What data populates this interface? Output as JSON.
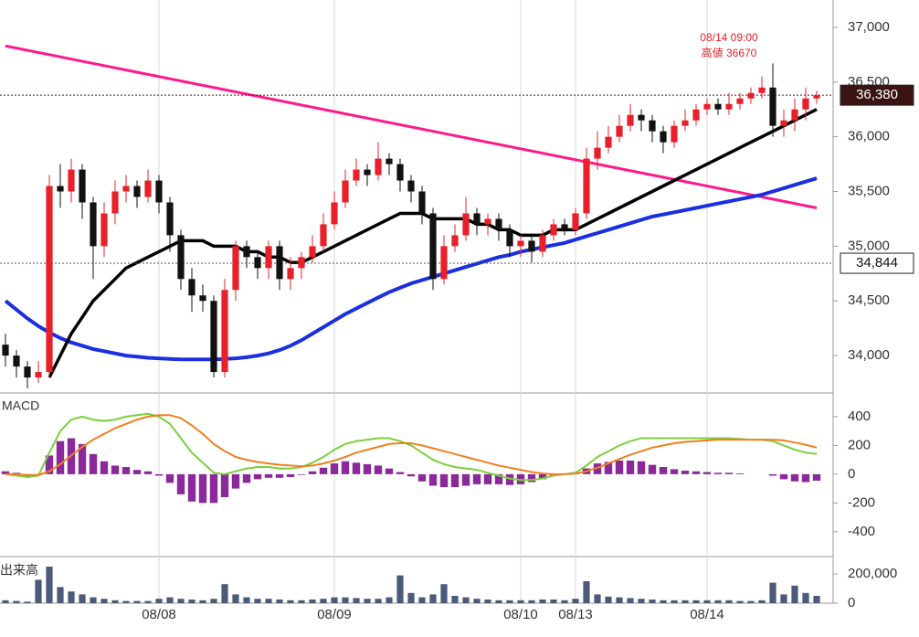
{
  "chart_data": [
    {
      "type": "candlestick",
      "xlim": [
        -0.5,
        75.5
      ],
      "xticks": [
        {
          "value": 14,
          "label": "08/08"
        },
        {
          "value": 30,
          "label": "08/09"
        },
        {
          "value": 47,
          "label": "08/10"
        },
        {
          "value": 52,
          "label": "08/13"
        },
        {
          "value": 64,
          "label": "08/14"
        }
      ],
      "ylim": [
        33675,
        37250
      ],
      "yticks": [
        {
          "value": 34000,
          "label": "34,000"
        },
        {
          "value": 34500,
          "label": "34,500"
        },
        {
          "value": 35000,
          "label": "35,000"
        },
        {
          "value": 35500,
          "label": "35,500"
        },
        {
          "value": 36000,
          "label": "36,000"
        },
        {
          "value": 36500,
          "label": "36,500"
        },
        {
          "value": 37000,
          "label": "37,000"
        }
      ],
      "up_color": "#e8202a",
      "down_color": "#111111",
      "open": [
        34100,
        34000,
        33900,
        33800,
        33850,
        35550,
        35500,
        35700,
        35400,
        35000,
        35300,
        35500,
        35550,
        35450,
        35600,
        35400,
        35100,
        34700,
        34550,
        34500,
        33850,
        34600,
        35000,
        34900,
        34800,
        35000,
        34700,
        34800,
        34900,
        35000,
        35200,
        35400,
        35600,
        35700,
        35650,
        35800,
        35750,
        35600,
        35500,
        35300,
        34700,
        35000,
        35100,
        35300,
        35200,
        35250,
        35150,
        35000,
        35050,
        34950,
        35100,
        35200,
        35150,
        35300,
        35800,
        35900,
        36000,
        36100,
        36200,
        36150,
        36050,
        35950,
        36100,
        36150,
        36250,
        36300,
        36250,
        36300,
        36350,
        36400,
        36450,
        36100,
        36150,
        36250,
        36350
      ],
      "high": [
        34200,
        34050,
        33950,
        33950,
        35650,
        35750,
        35800,
        35750,
        35450,
        35400,
        35600,
        35650,
        35600,
        35700,
        35650,
        35450,
        35150,
        34800,
        34650,
        34550,
        34700,
        35050,
        35050,
        34950,
        35050,
        35050,
        34900,
        34950,
        35100,
        35300,
        35500,
        35700,
        35800,
        35750,
        35950,
        35850,
        35800,
        35650,
        35550,
        35350,
        35100,
        35200,
        35450,
        35350,
        35300,
        35300,
        35200,
        35100,
        35100,
        35150,
        35250,
        35250,
        35350,
        35900,
        36050,
        36100,
        36200,
        36300,
        36250,
        36200,
        36100,
        36150,
        36250,
        36300,
        36350,
        36350,
        36400,
        36400,
        36450,
        36550,
        36670,
        36250,
        36350,
        36450,
        36420
      ],
      "low": [
        33900,
        33800,
        33700,
        33750,
        33800,
        35350,
        35400,
        35250,
        34700,
        34900,
        35200,
        35400,
        35350,
        35400,
        35300,
        34950,
        34600,
        34400,
        34400,
        33800,
        33800,
        34500,
        34800,
        34700,
        34700,
        34600,
        34600,
        34700,
        34850,
        34950,
        35150,
        35350,
        35550,
        35550,
        35600,
        35650,
        35500,
        35400,
        35200,
        34600,
        34650,
        34950,
        35050,
        35100,
        35100,
        35050,
        34900,
        34900,
        34850,
        34900,
        35050,
        35100,
        35100,
        35250,
        35700,
        35850,
        35950,
        36050,
        36050,
        35950,
        35850,
        35900,
        36050,
        36100,
        36200,
        36200,
        36200,
        36250,
        36300,
        36350,
        36000,
        36000,
        36050,
        36150,
        36300
      ],
      "close": [
        34000,
        33900,
        33800,
        33850,
        35550,
        35500,
        35700,
        35400,
        35000,
        35300,
        35500,
        35550,
        35450,
        35600,
        35400,
        35100,
        34700,
        34550,
        34500,
        33850,
        34600,
        35000,
        34900,
        34800,
        35000,
        34700,
        34800,
        34900,
        35000,
        35200,
        35400,
        35600,
        35700,
        35650,
        35800,
        35750,
        35600,
        35500,
        35300,
        34700,
        35000,
        35100,
        35300,
        35200,
        35250,
        35150,
        35000,
        35050,
        34950,
        35100,
        35200,
        35150,
        35300,
        35800,
        35900,
        36000,
        36100,
        36200,
        36150,
        36050,
        35950,
        36100,
        36150,
        36250,
        36300,
        36250,
        36300,
        36350,
        36400,
        36450,
        36100,
        36150,
        36250,
        36350,
        36380
      ],
      "series": [
        {
          "color": "#1a2fe0",
          "values": [
            34500,
            34420,
            34340,
            34270,
            34210,
            34160,
            34120,
            34090,
            34060,
            34040,
            34020,
            34000,
            33990,
            33980,
            33975,
            33970,
            33965,
            33965,
            33965,
            33965,
            33970,
            33975,
            33985,
            34000,
            34020,
            34050,
            34090,
            34140,
            34200,
            34260,
            34320,
            34380,
            34430,
            34480,
            34530,
            34580,
            34620,
            34660,
            34690,
            34720,
            34750,
            34780,
            34810,
            34840,
            34870,
            34900,
            34920,
            34950,
            34970,
            34990,
            35010,
            35030,
            35060,
            35090,
            35120,
            35150,
            35180,
            35210,
            35240,
            35270,
            35290,
            35310,
            35330,
            35350,
            35370,
            35390,
            35410,
            35430,
            35450,
            35470,
            35500,
            35530,
            35560,
            35590,
            35620
          ]
        },
        {
          "color": "#000000",
          "values": [
            null,
            null,
            null,
            null,
            33800,
            34000,
            34200,
            34350,
            34500,
            34600,
            34700,
            34800,
            34850,
            34900,
            34950,
            35000,
            35050,
            35050,
            35050,
            35000,
            35000,
            35000,
            34950,
            34950,
            34900,
            34900,
            34850,
            34850,
            34900,
            34950,
            35000,
            35050,
            35100,
            35150,
            35200,
            35250,
            35300,
            35300,
            35300,
            35250,
            35250,
            35250,
            35250,
            35200,
            35200,
            35150,
            35150,
            35100,
            35100,
            35100,
            35150,
            35150,
            35150,
            35200,
            35250,
            35300,
            35350,
            35400,
            35450,
            35500,
            35550,
            35600,
            35650,
            35700,
            35750,
            35800,
            35850,
            35900,
            35950,
            36000,
            36050,
            36100,
            36150,
            36200,
            36250
          ]
        }
      ],
      "trend_line": {
        "color": "#ff1a8c",
        "x": [
          0,
          74
        ],
        "values": [
          36830,
          35350
        ]
      },
      "price_marks": [
        {
          "value": 36380,
          "label": "36,380"
        },
        {
          "value": 34844,
          "label": "34,844"
        }
      ],
      "annotations": [
        "08/14 09:00",
        "高値 36670"
      ]
    },
    {
      "type": "macd",
      "title": "MACD",
      "ylim": [
        -560,
        552
      ],
      "yticks": [
        400,
        200,
        0,
        -200,
        -400
      ],
      "histogram": {
        "color": "#8a2a9a",
        "values": [
          20,
          10,
          -15,
          -5,
          130,
          230,
          250,
          210,
          140,
          90,
          60,
          50,
          30,
          20,
          -10,
          -60,
          -140,
          -190,
          -200,
          -200,
          -160,
          -100,
          -60,
          -35,
          -25,
          -25,
          -20,
          -5,
          20,
          45,
          75,
          90,
          80,
          70,
          60,
          40,
          15,
          -15,
          -50,
          -80,
          -90,
          -90,
          -80,
          -70,
          -70,
          -70,
          -75,
          -70,
          -55,
          -35,
          -10,
          0,
          5,
          40,
          75,
          85,
          95,
          95,
          90,
          65,
          50,
          35,
          25,
          20,
          15,
          10,
          10,
          5,
          0,
          0,
          -10,
          -35,
          -50,
          -55,
          -45
        ]
      },
      "series": [
        {
          "color": "#7ccf3c",
          "values": [
            0,
            -10,
            -20,
            -10,
            150,
            300,
            380,
            400,
            380,
            370,
            380,
            400,
            410,
            420,
            400,
            350,
            250,
            150,
            80,
            10,
            0,
            20,
            40,
            50,
            50,
            40,
            40,
            50,
            80,
            120,
            170,
            210,
            230,
            240,
            250,
            250,
            230,
            200,
            150,
            100,
            70,
            50,
            40,
            30,
            10,
            -10,
            -30,
            -40,
            -40,
            -30,
            -10,
            0,
            10,
            60,
            120,
            160,
            200,
            230,
            250,
            250,
            250,
            250,
            250,
            250,
            250,
            250,
            250,
            245,
            240,
            240,
            230,
            200,
            170,
            150,
            140
          ]
        },
        {
          "color": "#f07f20",
          "values": [
            0,
            0,
            -5,
            -5,
            20,
            70,
            130,
            190,
            240,
            280,
            320,
            350,
            380,
            400,
            410,
            410,
            390,
            340,
            280,
            210,
            160,
            120,
            100,
            85,
            75,
            65,
            60,
            55,
            60,
            75,
            95,
            120,
            150,
            170,
            190,
            210,
            215,
            215,
            200,
            180,
            160,
            140,
            120,
            100,
            80,
            60,
            45,
            30,
            15,
            5,
            0,
            0,
            5,
            20,
            45,
            75,
            105,
            135,
            160,
            185,
            200,
            215,
            225,
            230,
            235,
            240,
            240,
            240,
            240,
            240,
            240,
            235,
            220,
            205,
            185
          ]
        }
      ]
    },
    {
      "type": "volume",
      "title": "出来高",
      "ylim": [
        0,
        300000
      ],
      "yticks": [
        0,
        {
          "value": 200000,
          "label": "200,000"
        }
      ],
      "color": "#4a5a78",
      "values": [
        20000,
        15000,
        10000,
        160000,
        250000,
        110000,
        80000,
        60000,
        40000,
        30000,
        20000,
        15000,
        15000,
        15000,
        30000,
        40000,
        30000,
        25000,
        20000,
        30000,
        130000,
        60000,
        40000,
        30000,
        30000,
        25000,
        20000,
        20000,
        25000,
        30000,
        40000,
        40000,
        35000,
        30000,
        30000,
        40000,
        190000,
        70000,
        40000,
        60000,
        130000,
        50000,
        40000,
        30000,
        25000,
        20000,
        20000,
        20000,
        20000,
        25000,
        25000,
        20000,
        30000,
        150000,
        60000,
        45000,
        40000,
        35000,
        30000,
        25000,
        20000,
        20000,
        20000,
        20000,
        20000,
        20000,
        20000,
        15000,
        15000,
        20000,
        140000,
        60000,
        120000,
        70000,
        50000
      ]
    }
  ]
}
